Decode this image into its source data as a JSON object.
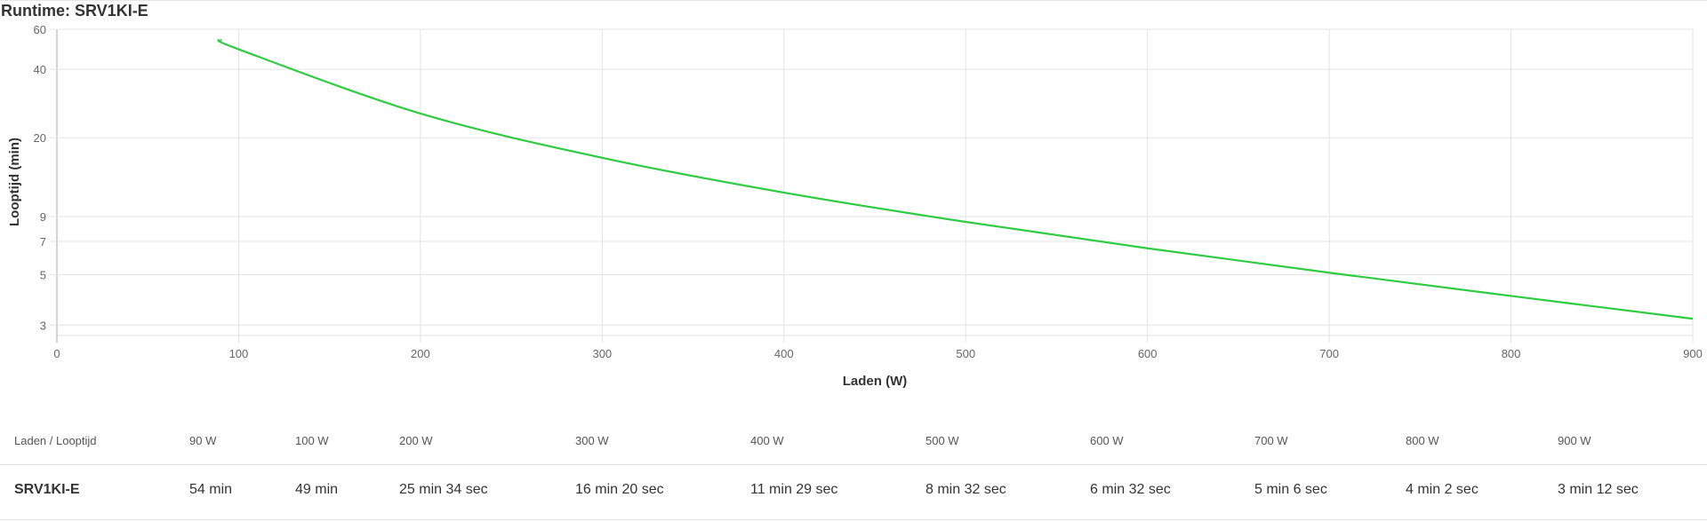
{
  "title": "Runtime: SRV1KI-E",
  "chart_data": {
    "type": "line",
    "xlabel": "Laden (W)",
    "ylabel": "Looptijd (min)",
    "xlim": [
      0,
      900
    ],
    "ylim": [
      2.7,
      60
    ],
    "yscale": "log",
    "xticks": [
      0,
      100,
      200,
      300,
      400,
      500,
      600,
      700,
      800,
      900
    ],
    "yticks": [
      60,
      40,
      20,
      9,
      7,
      5,
      3
    ],
    "grid": true,
    "color": "#2ecc40",
    "series": [
      {
        "x": [
          90,
          100,
          200,
          300,
          400,
          500,
          600,
          700,
          800,
          900
        ],
        "y": [
          54,
          49,
          25.57,
          16.33,
          11.48,
          8.53,
          6.53,
          5.1,
          4.03,
          3.2
        ]
      }
    ]
  },
  "table": {
    "header_label": "Laden / Looptijd",
    "columns": [
      "90 W",
      "100 W",
      "200 W",
      "300 W",
      "400 W",
      "500 W",
      "600 W",
      "700 W",
      "800 W",
      "900 W"
    ],
    "rows": [
      {
        "name": "SRV1KI-E",
        "values": [
          "54 min",
          "49 min",
          "25 min 34 sec",
          "16 min 20 sec",
          "11 min 29 sec",
          "8 min 32 sec",
          "6 min 32 sec",
          "5 min 6 sec",
          "4 min 2 sec",
          "3 min 12 sec"
        ]
      }
    ]
  }
}
